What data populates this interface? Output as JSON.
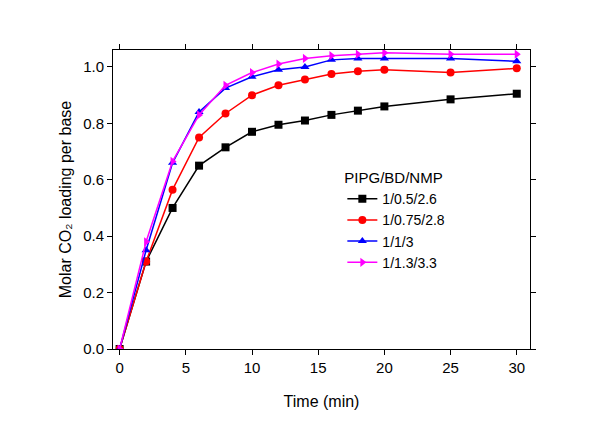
{
  "chart_data": {
    "type": "line",
    "x_label": "Time (min)",
    "y_label": "Molar CO₂ loading per base",
    "legend_title": "PIPG/BD/NMP",
    "x": [
      0,
      2,
      4,
      6,
      8,
      10,
      12,
      14,
      16,
      18,
      20,
      25,
      30
    ],
    "series": [
      {
        "name": "1/0.5/2.6",
        "color": "#000000",
        "marker": "square",
        "values": [
          0,
          0.31,
          0.5,
          0.65,
          0.715,
          0.77,
          0.795,
          0.81,
          0.83,
          0.845,
          0.86,
          0.885,
          0.905
        ]
      },
      {
        "name": "1/0.75/2.8",
        "color": "#ff0000",
        "marker": "circle",
        "values": [
          0,
          0.31,
          0.565,
          0.75,
          0.835,
          0.9,
          0.935,
          0.955,
          0.975,
          0.985,
          0.99,
          0.98,
          0.995
        ]
      },
      {
        "name": "1/1/3",
        "color": "#0000ff",
        "marker": "triangle-up",
        "values": [
          0,
          0.35,
          0.66,
          0.84,
          0.925,
          0.965,
          0.99,
          1.0,
          1.025,
          1.03,
          1.03,
          1.03,
          1.02
        ]
      },
      {
        "name": "1/1.3/3.3",
        "color": "#ff00ff",
        "marker": "triangle-right",
        "values": [
          0,
          0.38,
          0.665,
          0.83,
          0.935,
          0.98,
          1.01,
          1.03,
          1.04,
          1.045,
          1.05,
          1.045,
          1.045
        ]
      }
    ],
    "xlim": [
      -0.5,
      31
    ],
    "xticks": [
      0,
      5,
      10,
      15,
      20,
      25,
      30
    ],
    "ylim": [
      0,
      1.06
    ],
    "yticks": [
      {
        "value": 0,
        "label": "0.0"
      },
      0.2,
      0.4,
      0.6,
      0.8,
      {
        "value": 1,
        "label": "1.0"
      }
    ],
    "grid": false,
    "legend": "right"
  }
}
